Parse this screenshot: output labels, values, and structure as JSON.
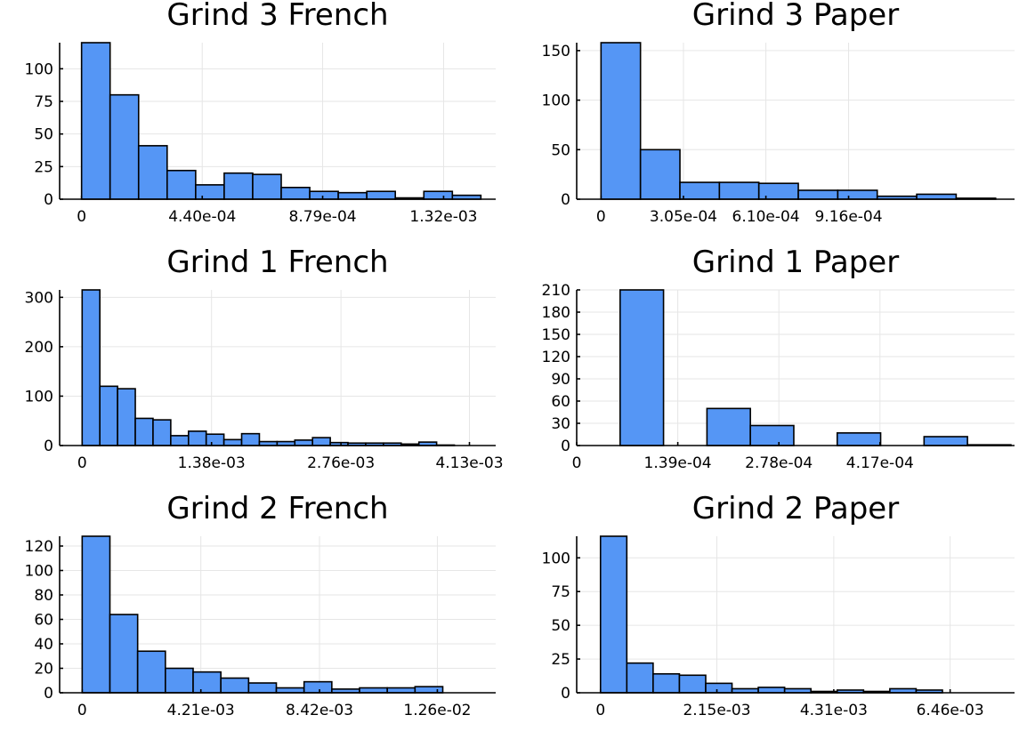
{
  "chart_data": [
    {
      "type": "bar",
      "title": "Grind 3 French",
      "bar_color": "#5596f5",
      "x_range": [
        -8e-05,
        0.00151
      ],
      "ylim": [
        0,
        120
      ],
      "bar_width": 0.000104,
      "bar_start": 0.0,
      "values": [
        120,
        80,
        41,
        22,
        11,
        20,
        19,
        9,
        6,
        5,
        6,
        1,
        6,
        3
      ],
      "y_ticks": [
        0,
        25,
        50,
        75,
        100
      ],
      "y_tick_labels": [
        "0",
        "25",
        "50",
        "75",
        "100"
      ],
      "x_ticks": [
        0,
        0.00044,
        0.000879,
        0.00132
      ],
      "x_tick_labels": [
        "0",
        "4.40e-04",
        "8.79e-04",
        "1.32e-03"
      ],
      "grid": true
    },
    {
      "type": "bar",
      "title": "Grind 3 Paper",
      "bar_color": "#5596f5",
      "x_range": [
        -9e-05,
        0.00153
      ],
      "ylim": [
        0,
        158
      ],
      "bar_width": 0.000146,
      "bar_start": 0.0,
      "values": [
        158,
        50,
        17,
        17,
        16,
        9,
        9,
        3,
        5,
        1
      ],
      "y_ticks": [
        0,
        50,
        100,
        150
      ],
      "y_tick_labels": [
        "0",
        "50",
        "100",
        "150"
      ],
      "x_ticks": [
        0,
        0.000305,
        0.00061,
        0.000916
      ],
      "x_tick_labels": [
        "0",
        "3.05e-04",
        "6.10e-04",
        "9.16e-04"
      ],
      "grid": true
    },
    {
      "type": "bar",
      "title": "Grind 1 French",
      "bar_color": "#5596f5",
      "x_range": [
        -0.00024,
        0.00441
      ],
      "ylim": [
        0,
        315
      ],
      "bar_width": 0.000189,
      "bar_start": 0.0,
      "values": [
        315,
        120,
        115,
        55,
        52,
        20,
        29,
        23,
        12,
        24,
        8,
        8,
        11,
        16,
        6,
        5,
        5,
        5,
        3,
        7,
        1
      ],
      "y_ticks": [
        0,
        100,
        200,
        300
      ],
      "y_tick_labels": [
        "0",
        "100",
        "200",
        "300"
      ],
      "x_ticks": [
        0,
        0.00138,
        0.00276,
        0.00413
      ],
      "x_tick_labels": [
        "0",
        "1.38e-03",
        "2.76e-03",
        "4.13e-03"
      ],
      "grid": true
    },
    {
      "type": "bar",
      "title": "Grind 1 Paper",
      "bar_color": "#5596f5",
      "x_range": [
        0,
        0.000602
      ],
      "ylim": [
        0,
        210
      ],
      "bar_width": 5.97e-05,
      "bar_start": 5.97e-05,
      "values": [
        210,
        0,
        50,
        27,
        0,
        17,
        0,
        12,
        1
      ],
      "y_ticks": [
        0,
        30,
        60,
        90,
        120,
        150,
        180,
        210
      ],
      "y_tick_labels": [
        "0",
        "30",
        "60",
        "90",
        "120",
        "150",
        "180",
        "210"
      ],
      "x_ticks": [
        0,
        0.000139,
        0.000278,
        0.000417
      ],
      "x_tick_labels": [
        "0",
        "1.39e-04",
        "2.78e-04",
        "4.17e-04"
      ],
      "grid": true
    },
    {
      "type": "bar",
      "title": "Grind 2 French",
      "bar_color": "#5596f5",
      "x_range": [
        -0.0008,
        0.01467
      ],
      "ylim": [
        0,
        128
      ],
      "bar_width": 0.000984,
      "bar_start": 0.0,
      "values": [
        128,
        64,
        34,
        20,
        17,
        12,
        8,
        4,
        9,
        3,
        4,
        4,
        5
      ],
      "y_ticks": [
        0,
        20,
        40,
        60,
        80,
        100,
        120
      ],
      "y_tick_labels": [
        "0",
        "20",
        "40",
        "60",
        "80",
        "100",
        "120"
      ],
      "x_ticks": [
        0,
        0.00421,
        0.00842,
        0.0126
      ],
      "x_tick_labels": [
        "0",
        "4.21e-03",
        "8.42e-03",
        "1.26e-02"
      ],
      "grid": true
    },
    {
      "type": "bar",
      "title": "Grind 2 Paper",
      "bar_color": "#5596f5",
      "x_range": [
        -0.00044,
        0.00765
      ],
      "ylim": [
        0,
        116
      ],
      "bar_width": 0.000486,
      "bar_start": 0.0,
      "values": [
        116,
        22,
        14,
        13,
        7,
        3,
        4,
        3,
        1,
        2,
        1,
        3,
        2
      ],
      "y_ticks": [
        0,
        25,
        50,
        75,
        100
      ],
      "y_tick_labels": [
        "0",
        "25",
        "50",
        "75",
        "100"
      ],
      "x_ticks": [
        0,
        0.00215,
        0.00431,
        0.00646
      ],
      "x_tick_labels": [
        "0",
        "2.15e-03",
        "4.31e-03",
        "6.46e-03"
      ],
      "grid": true
    }
  ]
}
